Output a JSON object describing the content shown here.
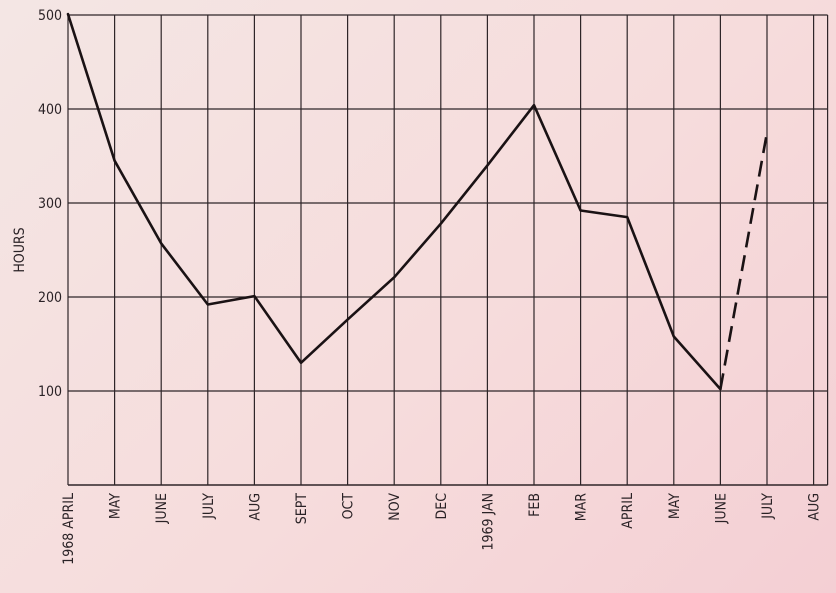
{
  "chart_data": {
    "type": "line",
    "title": "",
    "xlabel": "",
    "ylabel": "HOURS",
    "ylim": [
      0,
      500
    ],
    "yticks": [
      "100",
      "200",
      "300",
      "400",
      "500"
    ],
    "categories": [
      "1968 APRIL",
      "MAY",
      "JUNE",
      "JULY",
      "AUG",
      "SEPT",
      "OCT",
      "NOV",
      "DEC",
      "1969 JAN",
      "FEB",
      "MAR",
      "APRIL",
      "MAY",
      "JUNE",
      "JULY",
      "AUG"
    ],
    "series": [
      {
        "style": "solid",
        "values": [
          505,
          345,
          257,
          192,
          201,
          130,
          176,
          221,
          278,
          340,
          404,
          292,
          285,
          158,
          102,
          null,
          null
        ]
      },
      {
        "style": "dashed",
        "values": [
          null,
          null,
          null,
          null,
          null,
          null,
          null,
          null,
          null,
          null,
          null,
          null,
          null,
          null,
          102,
          375,
          null
        ]
      }
    ],
    "grid": true,
    "line_color": "#1a1214",
    "grid_color": "#2e2528"
  }
}
